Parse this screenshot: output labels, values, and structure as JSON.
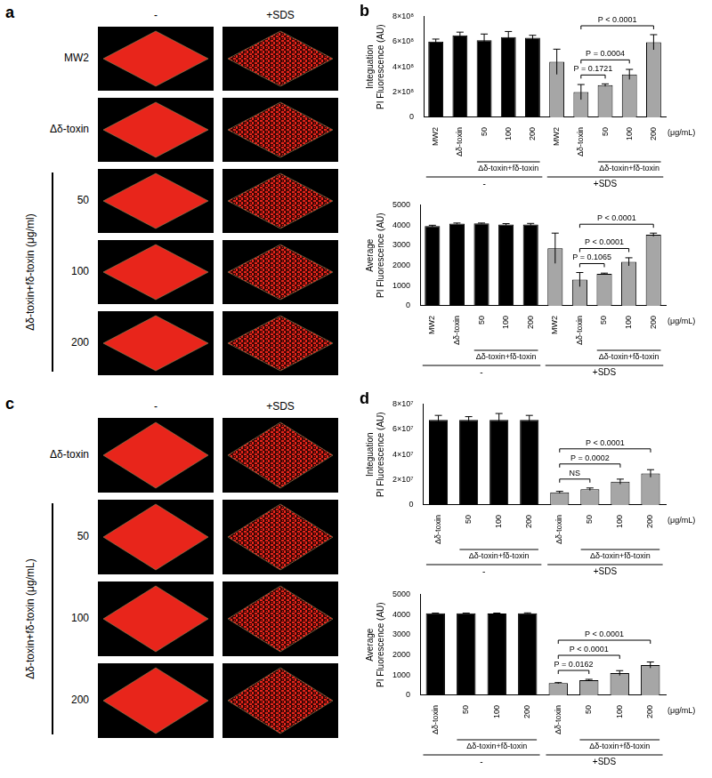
{
  "images": [
    {
      "panel": "a",
      "columns": [
        "-",
        "+SDS"
      ],
      "rows": [
        "MW2",
        "Δδ-toxin",
        "50",
        "100",
        "200"
      ],
      "row_group": {
        "label": "Δδ-toxin+fδ-toxin (μg/ml)",
        "from": 2,
        "to": 4
      }
    },
    {
      "panel": "c",
      "columns": [
        "-",
        "+SDS"
      ],
      "rows": [
        "Δδ-toxin",
        "50",
        "100",
        "200"
      ],
      "row_group": {
        "label": "Δδ-toxin+fδ-toxin (μg/mL)",
        "from": 1,
        "to": 3
      }
    }
  ],
  "chart_data": [
    {
      "panel": "b",
      "type": "bar",
      "y_label": [
        "Integuation",
        "PI Fluorescence (AU)"
      ],
      "categories": [
        "MW2",
        "Δδ-toxin",
        "50",
        "100",
        "200",
        "MW2",
        "Δδ-toxin",
        "50",
        "100",
        "200"
      ],
      "values": [
        600000000,
        650000000,
        610000000,
        635000000,
        630000000,
        440000000,
        200000000,
        255000000,
        340000000,
        595000000
      ],
      "errors": [
        20000000,
        25000000,
        50000000,
        45000000,
        20000000,
        100000000,
        60000000,
        10000000,
        40000000,
        60000000
      ],
      "colors": [
        "#000000",
        "#000000",
        "#000000",
        "#000000",
        "#000000",
        "#a6a6a6",
        "#a6a6a6",
        "#a6a6a6",
        "#a6a6a6",
        "#a6a6a6"
      ],
      "ylim": [
        0,
        800000000
      ],
      "yticks": [
        0,
        {
          "value": 200000000,
          "label": "2×10⁸"
        },
        {
          "value": 400000000,
          "label": "4×10⁸"
        },
        {
          "value": 600000000,
          "label": "6×10⁸"
        },
        {
          "value": 800000000,
          "label": "8×10⁸"
        }
      ],
      "grid": false,
      "comparisons": [
        {
          "from": 6,
          "to": 7,
          "label": "P = 0.1721"
        },
        {
          "from": 6,
          "to": 8,
          "label": "P = 0.0004"
        },
        {
          "from": 6,
          "to": 9,
          "label": "P < 0.0001"
        }
      ],
      "subgroups": [
        {
          "label": "Δδ-toxin+fδ-toxin",
          "from": 2,
          "to": 4
        },
        {
          "label": "Δδ-toxin+fδ-toxin",
          "from": 7,
          "to": 9
        }
      ],
      "groups": [
        {
          "label": "-",
          "from": 0,
          "to": 4
        },
        {
          "label": "+SDS",
          "from": 5,
          "to": 9
        }
      ],
      "unit": "(μg/mL)"
    },
    {
      "type": "bar",
      "y_label": [
        "Average",
        "PI Fluorescence (AU)"
      ],
      "categories": [
        "MW2",
        "Δδ-toxin",
        "50",
        "100",
        "200",
        "MW2",
        "Δδ-toxin",
        "50",
        "100",
        "200"
      ],
      "values": [
        3950,
        4070,
        4080,
        4030,
        4030,
        2850,
        1300,
        1580,
        2180,
        3520
      ],
      "errors": [
        40,
        30,
        20,
        40,
        50,
        750,
        350,
        40,
        200,
        80
      ],
      "colors": [
        "#000000",
        "#000000",
        "#000000",
        "#000000",
        "#000000",
        "#a6a6a6",
        "#a6a6a6",
        "#a6a6a6",
        "#a6a6a6",
        "#a6a6a6"
      ],
      "ylim": [
        0,
        5000
      ],
      "yticks": [
        0,
        1000,
        2000,
        3000,
        4000,
        5000
      ],
      "grid": false,
      "comparisons": [
        {
          "from": 6,
          "to": 7,
          "label": "P = 0.1065"
        },
        {
          "from": 6,
          "to": 8,
          "label": "P < 0.0001"
        },
        {
          "from": 6,
          "to": 9,
          "label": "P < 0.0001"
        }
      ],
      "subgroups": [
        {
          "label": "Δδ-toxin+fδ-toxin",
          "from": 2,
          "to": 4
        },
        {
          "label": "Δδ-toxin+fδ-toxin",
          "from": 7,
          "to": 9
        }
      ],
      "groups": [
        {
          "label": "-",
          "from": 0,
          "to": 4
        },
        {
          "label": "+SDS",
          "from": 5,
          "to": 9
        }
      ],
      "unit": "(μg/mL)"
    },
    {
      "panel": "d",
      "type": "bar",
      "y_label": [
        "Integuation",
        "PI Fluorescence (AU)"
      ],
      "categories": [
        "Δδ-toxin",
        "50",
        "100",
        "200",
        "Δδ-toxin",
        "50",
        "100",
        "200"
      ],
      "values": [
        67500000,
        67500000,
        67500000,
        67500000,
        10000000,
        12500000,
        18500000,
        25000000
      ],
      "errors": [
        3500000,
        2500000,
        5000000,
        3500000,
        800000,
        1000000,
        2000000,
        3000000
      ],
      "colors": [
        "#000000",
        "#000000",
        "#000000",
        "#000000",
        "#a6a6a6",
        "#a6a6a6",
        "#a6a6a6",
        "#a6a6a6"
      ],
      "ylim": [
        0,
        80000000
      ],
      "yticks": [
        0,
        {
          "value": 20000000,
          "label": "2×10⁷"
        },
        {
          "value": 40000000,
          "label": "4×10⁷"
        },
        {
          "value": 60000000,
          "label": "6×10⁷"
        },
        {
          "value": 80000000,
          "label": "8×10⁷"
        }
      ],
      "grid": false,
      "comparisons": [
        {
          "from": 4,
          "to": 5,
          "label": "NS"
        },
        {
          "from": 4,
          "to": 6,
          "label": "P = 0.0002"
        },
        {
          "from": 4,
          "to": 7,
          "label": "P < 0.0001"
        }
      ],
      "subgroups": [
        {
          "label": "Δδ-toxin+fδ-toxin",
          "from": 1,
          "to": 3
        },
        {
          "label": "Δδ-toxin+fδ-toxin",
          "from": 5,
          "to": 7
        }
      ],
      "groups": [
        {
          "label": "-",
          "from": 0,
          "to": 3
        },
        {
          "label": "+SDS",
          "from": 4,
          "to": 7
        }
      ],
      "unit": "(μg/mL)"
    },
    {
      "type": "bar",
      "y_label": [
        "Average",
        "PI Fluorescence (AU)"
      ],
      "categories": [
        "Δδ-toxin",
        "50",
        "100",
        "200",
        "Δδ-toxin",
        "50",
        "100",
        "200"
      ],
      "values": [
        4060,
        4060,
        4050,
        4060,
        600,
        750,
        1100,
        1500
      ],
      "errors": [
        10,
        10,
        20,
        20,
        30,
        40,
        120,
        150
      ],
      "colors": [
        "#000000",
        "#000000",
        "#000000",
        "#000000",
        "#a6a6a6",
        "#a6a6a6",
        "#a6a6a6",
        "#a6a6a6"
      ],
      "ylim": [
        0,
        5000
      ],
      "yticks": [
        0,
        1000,
        2000,
        3000,
        4000,
        5000
      ],
      "grid": false,
      "comparisons": [
        {
          "from": 4,
          "to": 5,
          "label": "P = 0.0162"
        },
        {
          "from": 4,
          "to": 6,
          "label": "P < 0.0001"
        },
        {
          "from": 4,
          "to": 7,
          "label": "P < 0.0001"
        }
      ],
      "subgroups": [
        {
          "label": "Δδ-toxin+fδ-toxin",
          "from": 1,
          "to": 3
        },
        {
          "label": "Δδ-toxin+fδ-toxin",
          "from": 5,
          "to": 7
        }
      ],
      "groups": [
        {
          "label": "-",
          "from": 0,
          "to": 3
        },
        {
          "label": "+SDS",
          "from": 4,
          "to": 7
        }
      ],
      "unit": "(μg/mL)"
    }
  ]
}
